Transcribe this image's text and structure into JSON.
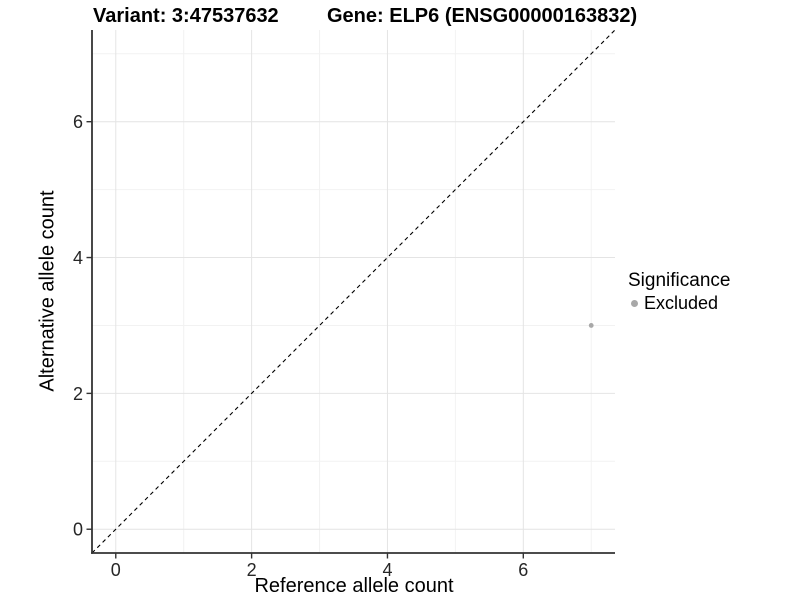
{
  "chart_data": {
    "type": "scatter",
    "title_parts": [
      "Variant: 3:47537632",
      "Gene: ELP6 (ENSG00000163832)"
    ],
    "xlabel": "Reference allele count",
    "ylabel": "Alternative allele count",
    "xlim": [
      -0.35,
      7.35
    ],
    "ylim": [
      -0.35,
      7.35
    ],
    "x_ticks": [
      0,
      2,
      4,
      6
    ],
    "y_ticks": [
      0,
      2,
      4,
      6
    ],
    "x_minor_gridlines": [
      1,
      3,
      5,
      7
    ],
    "y_minor_gridlines": [
      1,
      3,
      5,
      7
    ],
    "grid": "major+minor",
    "legend_position": "right",
    "series": [
      {
        "name": "Excluded",
        "marker": "circle",
        "color": "#a8a8a8",
        "points": [
          {
            "x": 7,
            "y": 3
          }
        ]
      }
    ],
    "reference_line": {
      "kind": "identity y=x",
      "style": "dashed",
      "color": "#000000",
      "from": [
        -0.35,
        -0.35
      ],
      "to": [
        7.35,
        7.35
      ]
    },
    "legend": {
      "title": "Significance",
      "entries": [
        {
          "label": "Excluded",
          "color": "#a8a8a8",
          "marker": "circle"
        }
      ]
    }
  },
  "colors": {
    "background": "#ffffff",
    "grid_major": "#e4e4e4",
    "grid_minor": "#f2f2f2",
    "axis_line": "#333333",
    "tick_mark": "#333333",
    "tick_label": "#262626",
    "title_text": "#000000",
    "excluded": "#a8a8a8"
  }
}
